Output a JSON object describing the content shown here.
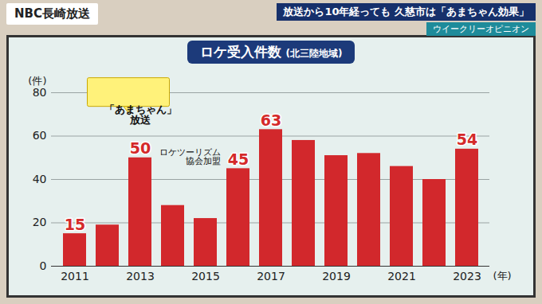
{
  "screen": {
    "broadcaster": "NBC長崎放送",
    "headline": "放送から10年経っても 久慈市は「あまちゃん効果」",
    "program": "ウイークリーオピニオン"
  },
  "chart_data": {
    "type": "bar",
    "title": "ロケ受入件数",
    "subtitle": "(北三陸地域)",
    "y_label": "(件)",
    "x_label": "(年)",
    "categories": [
      "2011",
      null,
      "2013",
      null,
      "2015",
      null,
      "2017",
      null,
      "2019",
      null,
      "2021",
      null,
      "2023"
    ],
    "values": [
      15,
      19,
      50,
      28,
      22,
      45,
      63,
      58,
      51,
      52,
      46,
      40,
      54
    ],
    "value_labels": [
      "15",
      null,
      "50",
      null,
      null,
      "45",
      "63",
      null,
      null,
      null,
      null,
      null,
      "54"
    ],
    "annotations": [
      null,
      null,
      "「あまちゃん」放送",
      null,
      null,
      "ロケツーリズム協会加盟",
      null,
      null,
      null,
      null,
      null,
      null,
      null
    ],
    "color": "#d2282c",
    "ylim": [
      0,
      80
    ],
    "yticks": [
      0,
      20,
      40,
      60,
      80
    ],
    "grid": true,
    "data_labels": true
  }
}
